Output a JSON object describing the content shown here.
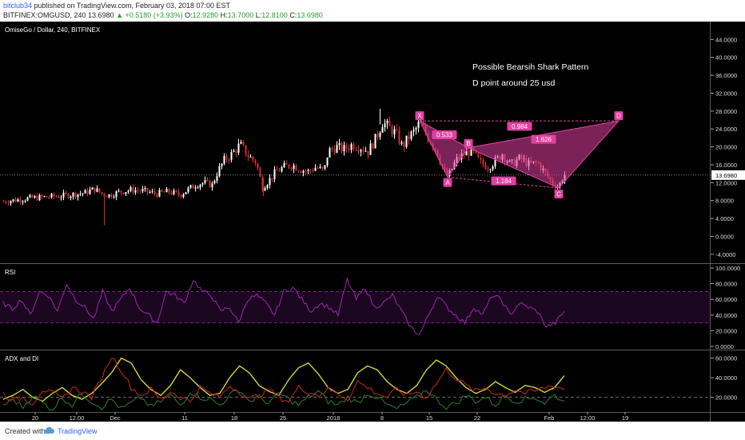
{
  "header": {
    "user": "bitclub34",
    "published": "published on TradingView.com, February 03, 2018 07:00 EST",
    "symbol": "BITFINEX:OMGUSD, 240",
    "last": "13.6980",
    "change": "▲ +0.5180 (+3.93%)",
    "ohlc": {
      "o_label": "O:",
      "o": "12.9280",
      "h_label": "H:",
      "h": "13.7000",
      "l_label": "L:",
      "l": "12.8100",
      "c_label": "C:",
      "c": "13.6980"
    }
  },
  "footer": {
    "created": "Created with",
    "brand": "TradingView"
  },
  "colors": {
    "background": "#000000",
    "up": "#ffffff",
    "down": "#d32f2f",
    "pattern": "#e040a0",
    "rsi": "#9c27b0",
    "adx": "#d4d43a",
    "di_plus": "#2e7d32",
    "di_minus": "#c62828"
  },
  "chart_data": [
    {
      "type": "candlestick",
      "title": "OmiseGo / Dollar, 240, BITFINEX",
      "y_ticks": [
        "44.0000",
        "40.0000",
        "36.0000",
        "32.0000",
        "28.0000",
        "24.0000",
        "20.0000",
        "16.0000",
        "12.0000",
        "8.0000",
        "4.0000",
        "0.0000",
        "-4.0000"
      ],
      "ylim": [
        -6,
        48
      ],
      "x_ticks": [
        "20",
        "12:00",
        "Dec",
        "11",
        "18",
        "25",
        "2018",
        "8",
        "15",
        "22",
        "Feb",
        "12:00",
        "19"
      ],
      "last_price_label": "13.6980",
      "close_path": [
        [
          0,
          7.7
        ],
        [
          40,
          8.6
        ],
        [
          75,
          9.0
        ],
        [
          105,
          9.7
        ],
        [
          118,
          10.6
        ],
        [
          128,
          9.4
        ],
        [
          137,
          9.2
        ],
        [
          150,
          10.0
        ],
        [
          165,
          10.4
        ],
        [
          180,
          10.1
        ],
        [
          195,
          9.5
        ],
        [
          210,
          10.0
        ],
        [
          225,
          9.3
        ],
        [
          235,
          10.5
        ],
        [
          245,
          11.6
        ],
        [
          255,
          12.0
        ],
        [
          265,
          11.5
        ],
        [
          272,
          14.5
        ],
        [
          280,
          17.0
        ],
        [
          290,
          18.5
        ],
        [
          300,
          20.5
        ],
        [
          310,
          18.0
        ],
        [
          320,
          16.5
        ],
        [
          328,
          11.0
        ],
        [
          336,
          12.5
        ],
        [
          345,
          14.5
        ],
        [
          355,
          15.5
        ],
        [
          365,
          16.0
        ],
        [
          375,
          15.0
        ],
        [
          385,
          14.5
        ],
        [
          395,
          15.5
        ],
        [
          405,
          14.5
        ],
        [
          410,
          19.0
        ],
        [
          420,
          20.0
        ],
        [
          430,
          19.5
        ],
        [
          440,
          20.5
        ],
        [
          450,
          20.0
        ],
        [
          460,
          19.0
        ],
        [
          470,
          22.0
        ],
        [
          478,
          25.5
        ],
        [
          485,
          24.5
        ],
        [
          495,
          23.0
        ],
        [
          503,
          20.0
        ],
        [
          510,
          22.0
        ],
        [
          518,
          23.5
        ],
        [
          525,
          25.5
        ],
        [
          535,
          22.0
        ],
        [
          545,
          19.5
        ],
        [
          555,
          14.5
        ],
        [
          560,
          13.2
        ],
        [
          570,
          17.0
        ],
        [
          585,
          19.0
        ],
        [
          592,
          18.5
        ],
        [
          600,
          16.5
        ],
        [
          610,
          15.5
        ],
        [
          620,
          17.0
        ],
        [
          628,
          18.5
        ],
        [
          638,
          16.0
        ],
        [
          650,
          17.5
        ],
        [
          662,
          16.0
        ],
        [
          672,
          16.5
        ],
        [
          682,
          14.0
        ],
        [
          690,
          12.0
        ],
        [
          698,
          11.0
        ],
        [
          705,
          13.7
        ]
      ],
      "pattern": {
        "X": {
          "label": "X",
          "price": 25.8
        },
        "A": {
          "label": "A",
          "price": 13.2
        },
        "B": {
          "label": "B",
          "price": 19.8
        },
        "C": {
          "label": "C",
          "price": 10.8
        },
        "D": {
          "label": "D",
          "price": 25.8
        },
        "ratios": {
          "XB": "0.533",
          "AC": "1.184",
          "XD": "0.984",
          "BD": "1.626"
        }
      },
      "annotations": [
        "Possible Bearsih Shark Pattern",
        "D point around 25 usd"
      ]
    },
    {
      "type": "line",
      "title": "RSI",
      "y_ticks": [
        "100.0000",
        "80.0000",
        "60.0000",
        "40.0000",
        "20.0000",
        "0.0000"
      ],
      "ylim": [
        0,
        100
      ],
      "bands": [
        70,
        30
      ],
      "series": [
        {
          "values": [
            55,
            48,
            60,
            40,
            70,
            65,
            45,
            80,
            60,
            50,
            35,
            70,
            45,
            60,
            75,
            50,
            40,
            30,
            70,
            65,
            55,
            85,
            70,
            65,
            45,
            50,
            30,
            60,
            65,
            55,
            40,
            70,
            75,
            60,
            45,
            55,
            50,
            40,
            85,
            60,
            75,
            50,
            55,
            65,
            45,
            25,
            15,
            40,
            65,
            50,
            40,
            30,
            50,
            40,
            65,
            60,
            40,
            55,
            50,
            45,
            25,
            30,
            45
          ]
        }
      ]
    },
    {
      "type": "line",
      "title": "ADX and DI",
      "y_ticks": [
        "60.0000",
        "40.0000",
        "20.0000"
      ],
      "ylim": [
        5,
        67
      ],
      "ref_line": 20,
      "series": [
        {
          "values": [
            18,
            22,
            28,
            20,
            16,
            24,
            30,
            22,
            18,
            24,
            34,
            45,
            60,
            55,
            38,
            28,
            22,
            32,
            48,
            40,
            30,
            22,
            24,
            40,
            52,
            45,
            32,
            26,
            22,
            38,
            50,
            55,
            44,
            30,
            24,
            28,
            45,
            52,
            48,
            36,
            28,
            24,
            32,
            48,
            58,
            52,
            40,
            30,
            24,
            28,
            36,
            30,
            25,
            32,
            30,
            25,
            30,
            42
          ]
        },
        {
          "values": [
            12,
            18,
            10,
            22,
            14,
            8,
            20,
            12,
            24,
            16,
            10,
            18,
            8,
            14,
            20,
            10,
            16,
            22,
            12,
            26,
            20,
            18,
            12,
            22,
            28,
            16,
            20,
            14,
            24,
            18,
            12,
            20,
            26,
            16,
            12,
            20,
            14,
            24,
            20,
            12,
            8,
            14,
            20,
            28,
            18,
            10,
            14,
            22,
            16,
            20,
            12,
            22,
            16,
            18,
            20,
            14,
            22,
            16
          ]
        },
        {
          "values": [
            24,
            16,
            20,
            14,
            28,
            24,
            18,
            30,
            26,
            20,
            40,
            62,
            48,
            30,
            22,
            28,
            18,
            26,
            20,
            16,
            30,
            24,
            20,
            32,
            26,
            18,
            22,
            28,
            20,
            16,
            30,
            26,
            22,
            28,
            24,
            18,
            36,
            30,
            24,
            20,
            28,
            22,
            26,
            20,
            34,
            48,
            40,
            32,
            26,
            30,
            24,
            22,
            28,
            24,
            26,
            30,
            32,
            28
          ]
        }
      ]
    }
  ]
}
